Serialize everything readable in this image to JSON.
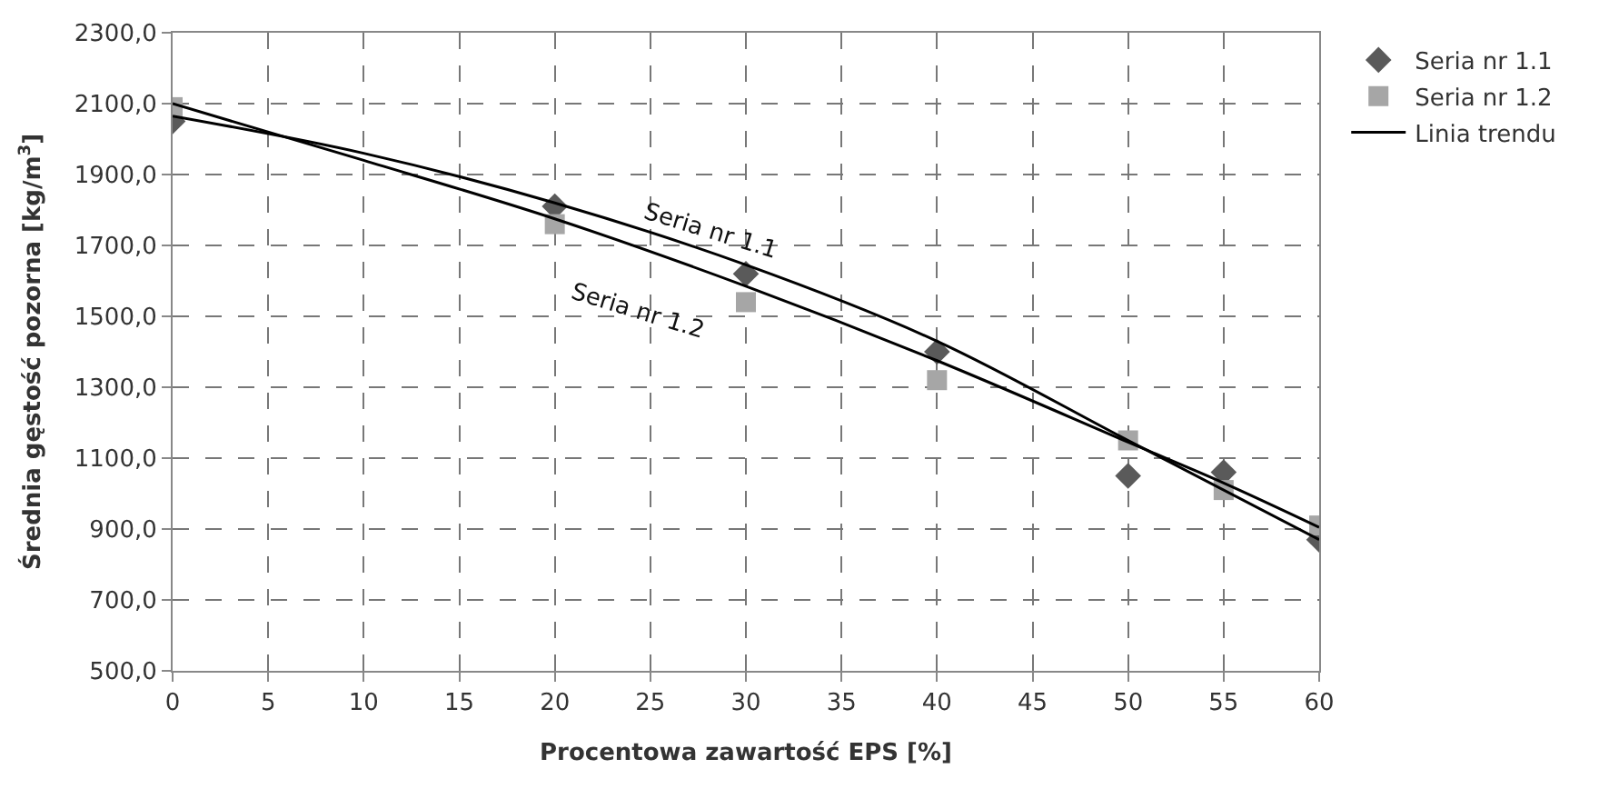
{
  "chart_data": {
    "type": "scatter",
    "xlabel": "Procentowa zawartość EPS [%]",
    "ylabel": "Średnia gęstość pozorna [kg/m$^{3}$]",
    "x": [
      0,
      20,
      30,
      40,
      50,
      55,
      60
    ],
    "series": [
      {
        "name": "Seria nr 1.1",
        "color": "#5a5a5a",
        "marker": "diamond",
        "values": [
          2050,
          1810,
          1620,
          1400,
          1050,
          1060,
          870
        ]
      },
      {
        "name": "Seria nr 1.2",
        "color": "#a6a6a6",
        "marker": "square",
        "values": [
          2090,
          1760,
          1540,
          1320,
          1150,
          1010,
          910
        ]
      },
      {
        "name": "Linia trendu",
        "type": "line",
        "color": "#000000",
        "x": [
          0,
          10,
          20,
          30,
          40,
          50,
          60
        ],
        "values": [
          2065,
          1960,
          1820,
          1645,
          1430,
          1150,
          870
        ]
      },
      {
        "type": "line",
        "color": "#000000",
        "x": [
          0,
          10,
          20,
          30,
          40,
          50,
          55,
          60
        ],
        "values": [
          2100,
          1940,
          1775,
          1585,
          1375,
          1145,
          1030,
          905
        ]
      }
    ],
    "annotations": [
      {
        "text": "Seria nr 1.1",
        "x": 30,
        "y": 1645
      },
      {
        "text": "Seria nr 1.2",
        "x": 30,
        "y": 1585
      }
    ],
    "xlim": [
      0,
      60
    ],
    "xticks": [
      0,
      5,
      10,
      15,
      20,
      25,
      30,
      35,
      40,
      45,
      50,
      55,
      60
    ],
    "ylim": [
      500,
      2300
    ],
    "yticks": [
      {
        "value": 500,
        "label": "500,0"
      },
      {
        "value": 700,
        "label": "700,0"
      },
      {
        "value": 900,
        "label": "900,0"
      },
      {
        "value": 1100,
        "label": "1100,0"
      },
      {
        "value": 1300,
        "label": "1300,0"
      },
      {
        "value": 1500,
        "label": "1500,0"
      },
      {
        "value": 1700,
        "label": "1700,0"
      },
      {
        "value": 1900,
        "label": "1900,0"
      },
      {
        "value": 2100,
        "label": "2100,0"
      },
      {
        "value": 2300,
        "label": "2300,0"
      }
    ],
    "grid": true,
    "legend": "right"
  }
}
